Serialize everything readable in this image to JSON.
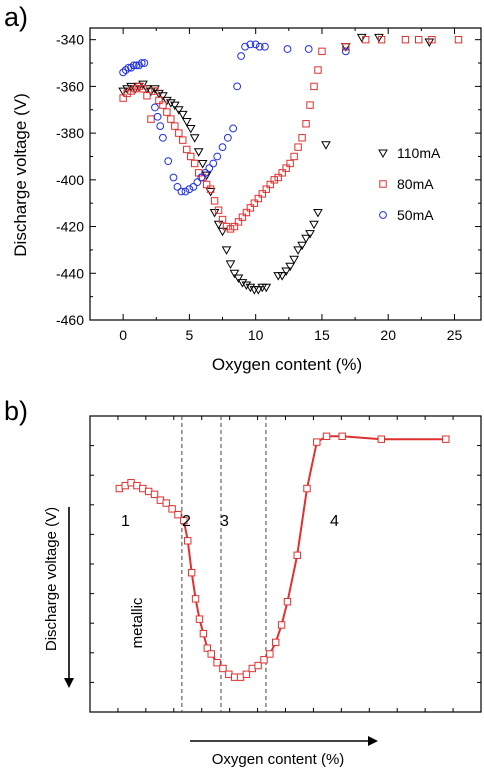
{
  "chart_data": [
    {
      "panel_label": "a)",
      "type": "scatter",
      "xlabel": "Oxygen content (%)",
      "ylabel": "Discharge voltage (V)",
      "xlim": [
        -2.5,
        27
      ],
      "ylim": [
        -460,
        -335
      ],
      "xticks": [
        0,
        5,
        10,
        15,
        20,
        25
      ],
      "yticks": [
        -340,
        -360,
        -380,
        -400,
        -420,
        -440,
        -460
      ],
      "legend_position": "right",
      "grid": false,
      "series": [
        {
          "name": "110mA",
          "marker": "triangle-down",
          "color": "#000000",
          "points": [
            [
              0.0,
              -362
            ],
            [
              0.3,
              -361
            ],
            [
              0.6,
              -360
            ],
            [
              0.9,
              -361
            ],
            [
              1.2,
              -360
            ],
            [
              1.5,
              -359
            ],
            [
              1.8,
              -361
            ],
            [
              2.1,
              -362
            ],
            [
              2.4,
              -361
            ],
            [
              2.7,
              -363
            ],
            [
              3.0,
              -364
            ],
            [
              3.3,
              -366
            ],
            [
              3.6,
              -367
            ],
            [
              3.9,
              -368
            ],
            [
              4.2,
              -370
            ],
            [
              4.5,
              -372
            ],
            [
              4.8,
              -375
            ],
            [
              5.1,
              -378
            ],
            [
              5.4,
              -382
            ],
            [
              5.7,
              -388
            ],
            [
              6.0,
              -393
            ],
            [
              6.3,
              -398
            ],
            [
              6.6,
              -405
            ],
            [
              6.9,
              -414
            ],
            [
              7.2,
              -419
            ],
            [
              7.5,
              -422
            ],
            [
              7.8,
              -430
            ],
            [
              8.1,
              -436
            ],
            [
              8.4,
              -440
            ],
            [
              8.7,
              -442
            ],
            [
              9.0,
              -444
            ],
            [
              9.3,
              -445
            ],
            [
              9.6,
              -446
            ],
            [
              9.9,
              -447
            ],
            [
              10.2,
              -447
            ],
            [
              10.5,
              -446
            ],
            [
              10.8,
              -446
            ],
            [
              11.7,
              -441
            ],
            [
              12.0,
              -441
            ],
            [
              12.3,
              -439
            ],
            [
              12.6,
              -437
            ],
            [
              12.9,
              -434
            ],
            [
              13.2,
              -430
            ],
            [
              13.5,
              -428
            ],
            [
              13.8,
              -425
            ],
            [
              14.1,
              -423
            ],
            [
              14.4,
              -419
            ],
            [
              14.7,
              -414
            ],
            [
              15.3,
              -385
            ],
            [
              16.8,
              -343
            ],
            [
              18.0,
              -339
            ],
            [
              19.3,
              -339
            ],
            [
              23.1,
              -341
            ]
          ]
        },
        {
          "name": "80mA",
          "marker": "square",
          "color": "#e03030",
          "points": [
            [
              0.0,
              -365
            ],
            [
              0.3,
              -363
            ],
            [
              0.6,
              -362
            ],
            [
              0.9,
              -361
            ],
            [
              1.2,
              -360
            ],
            [
              1.5,
              -361
            ],
            [
              1.8,
              -364
            ],
            [
              2.1,
              -374
            ],
            [
              2.4,
              -362
            ],
            [
              2.7,
              -366
            ],
            [
              3.0,
              -368
            ],
            [
              3.3,
              -371
            ],
            [
              3.6,
              -374
            ],
            [
              3.9,
              -377
            ],
            [
              4.2,
              -380
            ],
            [
              4.5,
              -383
            ],
            [
              4.8,
              -387
            ],
            [
              5.1,
              -390
            ],
            [
              5.4,
              -393
            ],
            [
              5.7,
              -397
            ],
            [
              6.0,
              -399
            ],
            [
              6.3,
              -402
            ],
            [
              6.6,
              -404
            ],
            [
              6.9,
              -409
            ],
            [
              7.2,
              -413
            ],
            [
              7.5,
              -417
            ],
            [
              7.8,
              -420
            ],
            [
              8.1,
              -421
            ],
            [
              8.4,
              -420
            ],
            [
              8.7,
              -418
            ],
            [
              9.0,
              -416
            ],
            [
              9.3,
              -414
            ],
            [
              9.6,
              -412
            ],
            [
              9.9,
              -410
            ],
            [
              10.2,
              -408
            ],
            [
              10.5,
              -406
            ],
            [
              10.8,
              -404
            ],
            [
              11.1,
              -402
            ],
            [
              11.4,
              -400
            ],
            [
              11.7,
              -399
            ],
            [
              12.0,
              -397
            ],
            [
              12.3,
              -395
            ],
            [
              12.6,
              -393
            ],
            [
              12.9,
              -390
            ],
            [
              13.2,
              -386
            ],
            [
              13.5,
              -382
            ],
            [
              13.8,
              -376
            ],
            [
              14.1,
              -368
            ],
            [
              14.4,
              -360
            ],
            [
              14.7,
              -353
            ],
            [
              15.0,
              -345
            ],
            [
              16.8,
              -343
            ],
            [
              18.3,
              -340
            ],
            [
              19.5,
              -340
            ],
            [
              21.3,
              -340
            ],
            [
              22.3,
              -340
            ],
            [
              23.3,
              -340
            ],
            [
              25.3,
              -340
            ]
          ]
        },
        {
          "name": "50mA",
          "marker": "circle",
          "color": "#2030e0",
          "points": [
            [
              0.0,
              -354
            ],
            [
              0.2,
              -353
            ],
            [
              0.4,
              -352
            ],
            [
              0.6,
              -352
            ],
            [
              0.8,
              -351
            ],
            [
              1.0,
              -351
            ],
            [
              1.2,
              -351
            ],
            [
              1.4,
              -350
            ],
            [
              1.6,
              -350
            ],
            [
              2.4,
              -369
            ],
            [
              2.6,
              -373
            ],
            [
              2.8,
              -377
            ],
            [
              3.0,
              -382
            ],
            [
              3.4,
              -392
            ],
            [
              3.8,
              -399
            ],
            [
              4.1,
              -403
            ],
            [
              4.4,
              -405
            ],
            [
              4.7,
              -405
            ],
            [
              5.0,
              -404
            ],
            [
              5.3,
              -403
            ],
            [
              5.6,
              -401
            ],
            [
              5.9,
              -399
            ],
            [
              6.2,
              -397
            ],
            [
              6.5,
              -395
            ],
            [
              6.8,
              -393
            ],
            [
              7.1,
              -390
            ],
            [
              7.5,
              -386
            ],
            [
              7.9,
              -382
            ],
            [
              8.3,
              -378
            ],
            [
              8.6,
              -360
            ],
            [
              8.9,
              -347
            ],
            [
              9.2,
              -343
            ],
            [
              9.6,
              -342
            ],
            [
              10.0,
              -342
            ],
            [
              10.3,
              -343
            ],
            [
              10.7,
              -343
            ],
            [
              12.4,
              -344
            ],
            [
              14.0,
              -344
            ],
            [
              16.8,
              -345
            ]
          ]
        }
      ]
    },
    {
      "panel_label": "b)",
      "type": "line",
      "xlabel": "Oxygen content (%)",
      "ylabel": "Discharge voltage (V)",
      "color": "#e03030",
      "marker": "square",
      "vertical_dashed_lines": [
        3.2,
        5.2,
        7.5
      ],
      "region_labels": [
        "1",
        "2",
        "3",
        "4"
      ],
      "annotation": "metallic",
      "points": [
        [
          0.0,
          -353
        ],
        [
          0.3,
          -352
        ],
        [
          0.6,
          -351
        ],
        [
          0.9,
          -352
        ],
        [
          1.2,
          -353
        ],
        [
          1.5,
          -354
        ],
        [
          1.8,
          -355
        ],
        [
          2.1,
          -357
        ],
        [
          2.4,
          -358
        ],
        [
          2.7,
          -360
        ],
        [
          3.0,
          -362
        ],
        [
          3.3,
          -364
        ],
        [
          3.5,
          -371
        ],
        [
          3.7,
          -382
        ],
        [
          3.9,
          -391
        ],
        [
          4.1,
          -398
        ],
        [
          4.3,
          -403
        ],
        [
          4.5,
          -408
        ],
        [
          4.7,
          -410
        ],
        [
          5.0,
          -413
        ],
        [
          5.3,
          -415
        ],
        [
          5.6,
          -417
        ],
        [
          5.9,
          -418
        ],
        [
          6.2,
          -418
        ],
        [
          6.5,
          -417
        ],
        [
          6.8,
          -415
        ],
        [
          7.1,
          -414
        ],
        [
          7.4,
          -412
        ],
        [
          7.7,
          -410
        ],
        [
          8.0,
          -406
        ],
        [
          8.3,
          -400
        ],
        [
          8.6,
          -392
        ],
        [
          9.1,
          -376
        ],
        [
          9.6,
          -353
        ],
        [
          10.1,
          -337
        ],
        [
          10.6,
          -335
        ],
        [
          11.4,
          -335
        ],
        [
          13.4,
          -336
        ],
        [
          16.7,
          -336
        ]
      ]
    }
  ]
}
